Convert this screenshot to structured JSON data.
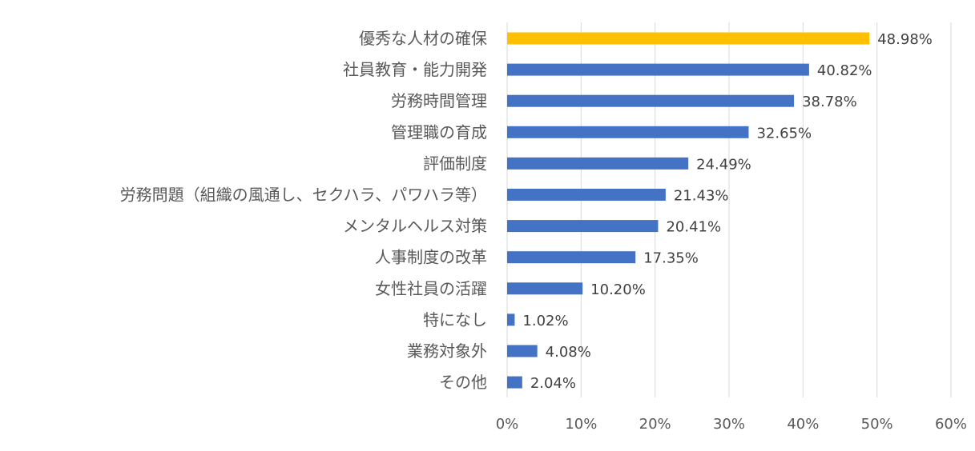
{
  "chart_data": {
    "type": "bar",
    "orientation": "horizontal",
    "categories": [
      "優秀な人材の確保",
      "社員教育・能力開発",
      "労務時間管理",
      "管理職の育成",
      "評価制度",
      "労務問題（組織の風通し、セクハラ、パワハラ等）",
      "メンタルヘルス対策",
      "人事制度の改革",
      "女性社員の活躍",
      "特になし",
      "業務対象外",
      "その他"
    ],
    "values": [
      48.98,
      40.82,
      38.78,
      32.65,
      24.49,
      21.43,
      20.41,
      17.35,
      10.2,
      1.02,
      4.08,
      2.04
    ],
    "value_labels": [
      "48.98%",
      "40.82%",
      "38.78%",
      "32.65%",
      "24.49%",
      "21.43%",
      "20.41%",
      "17.35%",
      "10.20%",
      "1.02%",
      "4.08%",
      "2.04%"
    ],
    "xlim": [
      0,
      60
    ],
    "x_ticks": [
      0,
      10,
      20,
      30,
      40,
      50,
      60
    ],
    "x_tick_labels": [
      "0%",
      "10%",
      "20%",
      "30%",
      "40%",
      "50%",
      "60%"
    ],
    "grid": "vertical",
    "legend": "none",
    "title": "",
    "xlabel": "",
    "ylabel": "",
    "colors": {
      "default_bar": "#4472c4",
      "highlight_bar": "#ffc000",
      "highlight_index": 0
    }
  }
}
